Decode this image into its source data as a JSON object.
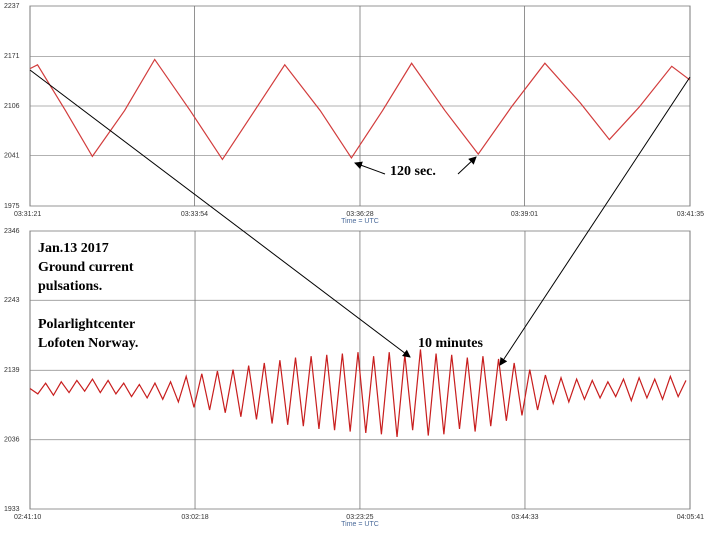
{
  "chart_data": [
    {
      "type": "line",
      "x_label": "Time = UTC",
      "annotations": [
        "120 sec."
      ],
      "xlim": [
        12681,
        13295
      ],
      "xticks": [
        {
          "value": 12681,
          "label": "03:31:21"
        },
        {
          "value": 12834,
          "label": "03:33:54"
        },
        {
          "value": 12988,
          "label": "03:36:28"
        },
        {
          "value": 13141,
          "label": "03:39:01"
        },
        {
          "value": 13295,
          "label": "03:41:35"
        }
      ],
      "ylim": [
        1975,
        2237
      ],
      "yticks": [
        1975,
        2041,
        2106,
        2171,
        2237
      ],
      "grid": true,
      "series": [
        {
          "color": "#d23c3c",
          "x": [
            12681,
            12688,
            12714,
            12739,
            12769,
            12797,
            12830,
            12860,
            12890,
            12918,
            12951,
            12980,
            13009,
            13036,
            13067,
            13098,
            13129,
            13160,
            13193,
            13220,
            13248,
            13278,
            13295
          ],
          "values": [
            2155,
            2160,
            2100,
            2040,
            2100,
            2167,
            2100,
            2036,
            2100,
            2160,
            2100,
            2038,
            2100,
            2162,
            2100,
            2043,
            2105,
            2162,
            2110,
            2062,
            2105,
            2158,
            2140
          ]
        }
      ]
    },
    {
      "type": "line",
      "x_label": "Time = UTC",
      "annotations": [
        "Jan.13 2017",
        "Ground current",
        "pulsations.",
        "Polarlightcenter",
        "Lofoten Norway.",
        "10 minutes"
      ],
      "xlim": [
        9670,
        14741
      ],
      "xticks": [
        {
          "value": 9670,
          "label": "02:41:10"
        },
        {
          "value": 10938,
          "label": "03:02:18"
        },
        {
          "value": 12205,
          "label": "03:23:25"
        },
        {
          "value": 13473,
          "label": "03:44:33"
        },
        {
          "value": 14741,
          "label": "04:05:41"
        }
      ],
      "ylim": [
        1933,
        2346
      ],
      "yticks": [
        1933,
        2036,
        2139,
        2243,
        2346
      ],
      "grid": true,
      "series": [
        {
          "color": "#c81e1e",
          "x": [
            9670,
            9730,
            9790,
            9850,
            9910,
            9970,
            10030,
            10090,
            10150,
            10210,
            10270,
            10330,
            10390,
            10450,
            10510,
            10570,
            10630,
            10690,
            10750,
            10810,
            10870,
            10930,
            10990,
            11050,
            11110,
            11170,
            11230,
            11290,
            11350,
            11410,
            11470,
            11530,
            11590,
            11650,
            11710,
            11770,
            11830,
            11890,
            11950,
            12010,
            12070,
            12130,
            12190,
            12250,
            12310,
            12370,
            12430,
            12490,
            12550,
            12610,
            12670,
            12730,
            12790,
            12850,
            12910,
            12970,
            13030,
            13090,
            13150,
            13210,
            13270,
            13330,
            13390,
            13450,
            13510,
            13570,
            13630,
            13690,
            13750,
            13810,
            13870,
            13930,
            13990,
            14050,
            14110,
            14170,
            14230,
            14290,
            14350,
            14410,
            14470,
            14530,
            14590,
            14650,
            14710
          ],
          "values": [
            2112,
            2104,
            2120,
            2102,
            2122,
            2106,
            2124,
            2108,
            2126,
            2106,
            2124,
            2104,
            2120,
            2100,
            2118,
            2098,
            2120,
            2096,
            2122,
            2092,
            2130,
            2084,
            2134,
            2080,
            2138,
            2076,
            2140,
            2070,
            2146,
            2066,
            2150,
            2060,
            2154,
            2058,
            2158,
            2056,
            2160,
            2052,
            2162,
            2050,
            2164,
            2048,
            2166,
            2046,
            2160,
            2044,
            2166,
            2040,
            2162,
            2050,
            2170,
            2042,
            2164,
            2044,
            2162,
            2052,
            2158,
            2048,
            2160,
            2056,
            2156,
            2064,
            2150,
            2072,
            2140,
            2080,
            2132,
            2090,
            2128,
            2092,
            2126,
            2096,
            2124,
            2098,
            2122,
            2100,
            2126,
            2094,
            2128,
            2098,
            2126,
            2096,
            2130,
            2100,
            2124
          ]
        }
      ]
    }
  ]
}
